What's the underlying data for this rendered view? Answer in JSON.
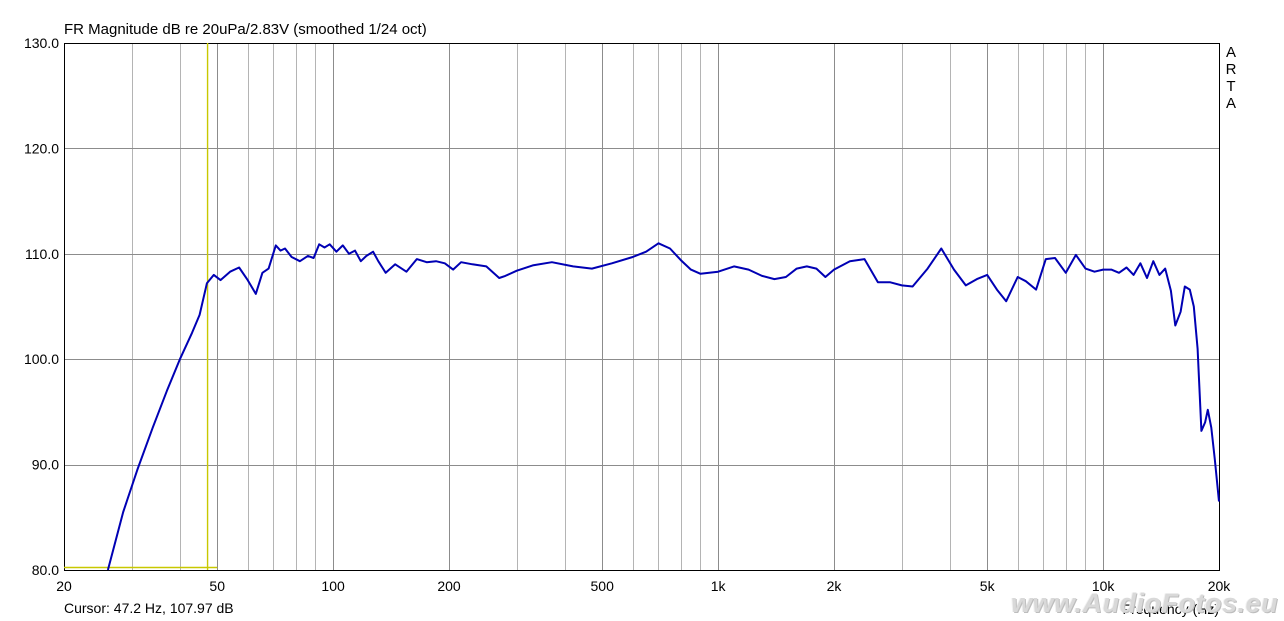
{
  "title": "FR Magnitude dB re 20uPa/2.83V (smoothed 1/24 oct)",
  "cursor_readout": "Cursor: 47.2 Hz, 107.97 dB",
  "brand_letters": [
    "A",
    "R",
    "T",
    "A"
  ],
  "watermark": "www.AudioFotos.eu",
  "colors": {
    "curve": "#0000b4",
    "cursor": "#c8c800",
    "grid": "#b4b4b4",
    "frame": "#000000",
    "background": "#ffffff"
  },
  "chart_data": {
    "type": "line",
    "title": "FR Magnitude dB re 20uPa/2.83V (smoothed 1/24 oct)",
    "xlabel": "Frequency (Hz)",
    "ylabel": "",
    "x_scale": "log",
    "xlim": [
      20,
      20000
    ],
    "ylim": [
      80,
      130
    ],
    "grid": true,
    "x_ticks": [
      {
        "value": 20,
        "label": "20"
      },
      {
        "value": 50,
        "label": "50"
      },
      {
        "value": 100,
        "label": "100"
      },
      {
        "value": 200,
        "label": "200"
      },
      {
        "value": 500,
        "label": "500"
      },
      {
        "value": 1000,
        "label": "1k"
      },
      {
        "value": 2000,
        "label": "2k"
      },
      {
        "value": 5000,
        "label": "5k"
      },
      {
        "value": 10000,
        "label": "10k"
      },
      {
        "value": 20000,
        "label": "20k"
      }
    ],
    "y_ticks": [
      {
        "value": 80,
        "label": "80.0"
      },
      {
        "value": 90,
        "label": "90.0"
      },
      {
        "value": 100,
        "label": "100.0"
      },
      {
        "value": 110,
        "label": "110.0"
      },
      {
        "value": 120,
        "label": "120.0"
      },
      {
        "value": 130,
        "label": "130.0"
      }
    ],
    "cursor": {
      "x": 47.2,
      "y": 107.97
    },
    "series": [
      {
        "x": [
          26.0,
          28.5,
          31.0,
          34.0,
          37.0,
          40.0,
          43.0,
          45.0,
          47.0,
          49.0,
          51.0,
          54.0,
          57.0,
          60.0,
          63.0,
          65.5,
          68.0,
          71.0,
          73.0,
          75.0,
          78.0,
          82.0,
          86.0,
          89.0,
          92.0,
          95.0,
          98.0,
          102.0,
          106.0,
          110.0,
          114.0,
          118.0,
          122.0,
          127.0,
          131.0,
          137.0,
          145.0,
          155.0,
          165.0,
          175.0,
          185.0,
          195.0,
          205.0,
          215.0,
          230.0,
          250.0,
          270.0,
          280.0,
          300.0,
          330.0,
          370.0,
          420.0,
          470.0,
          530.0,
          600.0,
          650.0,
          700.0,
          750.0,
          800.0,
          850.0,
          900.0,
          1000.0,
          1100.0,
          1200.0,
          1300.0,
          1400.0,
          1500.0,
          1600.0,
          1700.0,
          1800.0,
          1900.0,
          2000.0,
          2200.0,
          2400.0,
          2600.0,
          2800.0,
          3000.0,
          3200.0,
          3500.0,
          3800.0,
          4100.0,
          4400.0,
          4700.0,
          5000.0,
          5300.0,
          5600.0,
          6000.0,
          6300.0,
          6700.0,
          7100.0,
          7500.0,
          8000.0,
          8500.0,
          9000.0,
          9500.0,
          10000.0,
          10500.0,
          11000.0,
          11500.0,
          12000.0,
          12500.0,
          13000.0,
          13500.0,
          14000.0,
          14500.0,
          15000.0,
          15400.0,
          15900.0,
          16300.0,
          16800.0,
          17200.0,
          17600.0,
          18000.0,
          18400.0,
          18700.0,
          19100.0,
          19500.0,
          20000.0
        ],
        "y": [
          80.0,
          85.5,
          89.5,
          93.5,
          97.0,
          100.0,
          102.5,
          104.2,
          107.2,
          108.0,
          107.5,
          108.3,
          108.7,
          107.5,
          106.2,
          108.2,
          108.6,
          110.8,
          110.3,
          110.5,
          109.7,
          109.3,
          109.8,
          109.6,
          110.9,
          110.6,
          110.9,
          110.2,
          110.8,
          110.0,
          110.3,
          109.3,
          109.8,
          110.2,
          109.3,
          108.2,
          109.0,
          108.3,
          109.5,
          109.2,
          109.3,
          109.1,
          108.5,
          109.2,
          109.0,
          108.8,
          107.7,
          107.9,
          108.4,
          108.9,
          109.2,
          108.8,
          108.6,
          109.1,
          109.7,
          110.2,
          111.0,
          110.5,
          109.4,
          108.5,
          108.1,
          108.3,
          108.8,
          108.5,
          107.9,
          107.6,
          107.8,
          108.6,
          108.8,
          108.6,
          107.8,
          108.5,
          109.3,
          109.5,
          107.3,
          107.3,
          107.0,
          106.9,
          108.6,
          110.5,
          108.5,
          107.0,
          107.6,
          108.0,
          106.6,
          105.5,
          107.8,
          107.4,
          106.6,
          109.5,
          109.6,
          108.2,
          109.9,
          108.6,
          108.3,
          108.5,
          108.5,
          108.2,
          108.7,
          108.0,
          109.1,
          107.7,
          109.3,
          108.0,
          108.6,
          106.5,
          103.2,
          104.5,
          106.9,
          106.6,
          105.0,
          101.0,
          93.2,
          94.0,
          95.2,
          93.5,
          90.5,
          86.5
        ]
      }
    ]
  }
}
